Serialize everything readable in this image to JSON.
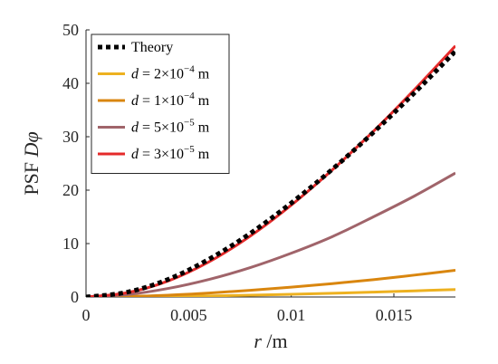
{
  "chart_data": {
    "type": "line",
    "title": "",
    "xlabel_var": "r",
    "xlabel_unit": " /m",
    "ylabel_text": "PSF ",
    "ylabel_var": "Dφ",
    "xlim": [
      0,
      0.018
    ],
    "ylim": [
      0,
      50
    ],
    "xticks": [
      0,
      0.005,
      0.01,
      0.015
    ],
    "xtick_labels": [
      "0",
      "0.005",
      "0.01",
      "0.015"
    ],
    "yticks": [
      0,
      10,
      20,
      30,
      40,
      50
    ],
    "ytick_labels": [
      "0",
      "10",
      "20",
      "30",
      "40",
      "50"
    ],
    "grid": false,
    "legend_position": "top-left",
    "series": [
      {
        "name": "Theory",
        "legend": {
          "var": "",
          "lhs": "",
          "mant": "Theory",
          "exp": "",
          "unit": ""
        },
        "color": "#000000",
        "dashed": true,
        "x": [
          0,
          0.002,
          0.004,
          0.006,
          0.008,
          0.01,
          0.012,
          0.014,
          0.016,
          0.018
        ],
        "y": [
          0,
          0.9,
          3.3,
          7.1,
          11.9,
          17.6,
          23.9,
          30.8,
          38.2,
          46.0
        ]
      },
      {
        "name": "d = 2×10^-4 m",
        "legend": {
          "var": "d",
          "lhs": " = 2×10",
          "mant": "",
          "exp": "−4",
          "unit": " m"
        },
        "color": "#EDB120",
        "dashed": false,
        "x": [
          0,
          0.002,
          0.004,
          0.006,
          0.008,
          0.01,
          0.012,
          0.014,
          0.016,
          0.018
        ],
        "y": [
          0,
          0.03,
          0.1,
          0.2,
          0.33,
          0.5,
          0.69,
          0.91,
          1.15,
          1.4
        ]
      },
      {
        "name": "d = 1×10^-4 m",
        "legend": {
          "var": "d",
          "lhs": " = 1×10",
          "mant": "",
          "exp": "−4",
          "unit": " m"
        },
        "color": "#D9860F",
        "dashed": false,
        "x": [
          0,
          0.002,
          0.004,
          0.006,
          0.008,
          0.01,
          0.012,
          0.014,
          0.016,
          0.018
        ],
        "y": [
          0,
          0.1,
          0.35,
          0.75,
          1.25,
          1.85,
          2.5,
          3.25,
          4.1,
          5.0
        ]
      },
      {
        "name": "d = 5×10^-5 m",
        "legend": {
          "var": "d",
          "lhs": " = 5×10",
          "mant": "",
          "exp": "−5",
          "unit": " m"
        },
        "color": "#A0646A",
        "dashed": false,
        "x": [
          0,
          0.002,
          0.004,
          0.006,
          0.008,
          0.01,
          0.012,
          0.014,
          0.016,
          0.018
        ],
        "y": [
          0,
          0.45,
          1.6,
          3.3,
          5.5,
          8.2,
          11.3,
          15.0,
          18.9,
          23.2
        ]
      },
      {
        "name": "d = 3×10^-5 m",
        "legend": {
          "var": "d",
          "lhs": " = 3×10",
          "mant": "",
          "exp": "−5",
          "unit": " m"
        },
        "color": "#E52A2A",
        "dashed": false,
        "x": [
          0,
          0.002,
          0.004,
          0.006,
          0.008,
          0.01,
          0.012,
          0.014,
          0.016,
          0.018
        ],
        "y": [
          0,
          0.8,
          3.0,
          6.6,
          11.4,
          17.2,
          23.8,
          31.0,
          38.8,
          47.0
        ]
      }
    ]
  }
}
